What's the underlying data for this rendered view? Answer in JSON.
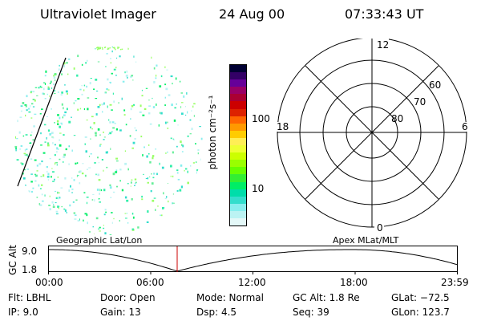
{
  "header": {
    "instrument": "Ultraviolet Imager",
    "date": "24 Aug 00",
    "time": "07:33:43 UT"
  },
  "colorbar": {
    "label": "photon cm⁻²s⁻¹",
    "ticks": [
      "100",
      "10"
    ],
    "colors": [
      "#000033",
      "#330066",
      "#660099",
      "#990066",
      "#aa0033",
      "#cc0000",
      "#dd2200",
      "#ff6600",
      "#ff9900",
      "#ffcc00",
      "#ffee55",
      "#eeff33",
      "#ccff00",
      "#99ff00",
      "#66ff00",
      "#33ee33",
      "#00ee66",
      "#00ddaa",
      "#33ddcc",
      "#88eeee",
      "#bbf3f3",
      "#e4f8f8"
    ]
  },
  "polar": {
    "mlt_labels": {
      "top": "12",
      "bottom": "0",
      "left": "18",
      "right": "6"
    },
    "lat_labels": [
      "60",
      "70",
      "80"
    ]
  },
  "timeline": {
    "ylabel": "GC Alt",
    "y_ticks": [
      "9.0",
      "1.8"
    ],
    "left_title": "Geographic Lat/Lon",
    "right_title": "Apex MLat/MLT",
    "x_ticks": [
      "00:00",
      "06:00",
      "12:00",
      "18:00",
      "23:59"
    ]
  },
  "info": {
    "flt": "Flt: LBHL",
    "ip": "IP:  9.0",
    "door": "Door: Open",
    "gain": "Gain: 13",
    "mode": "Mode: Normal",
    "dsp": "Dsp:     4.5",
    "gcalt": "GC Alt: 1.8 Re",
    "seq": "Seq: 39",
    "glat": "GLat: −72.5",
    "glon": "GLon: 123.7"
  }
}
